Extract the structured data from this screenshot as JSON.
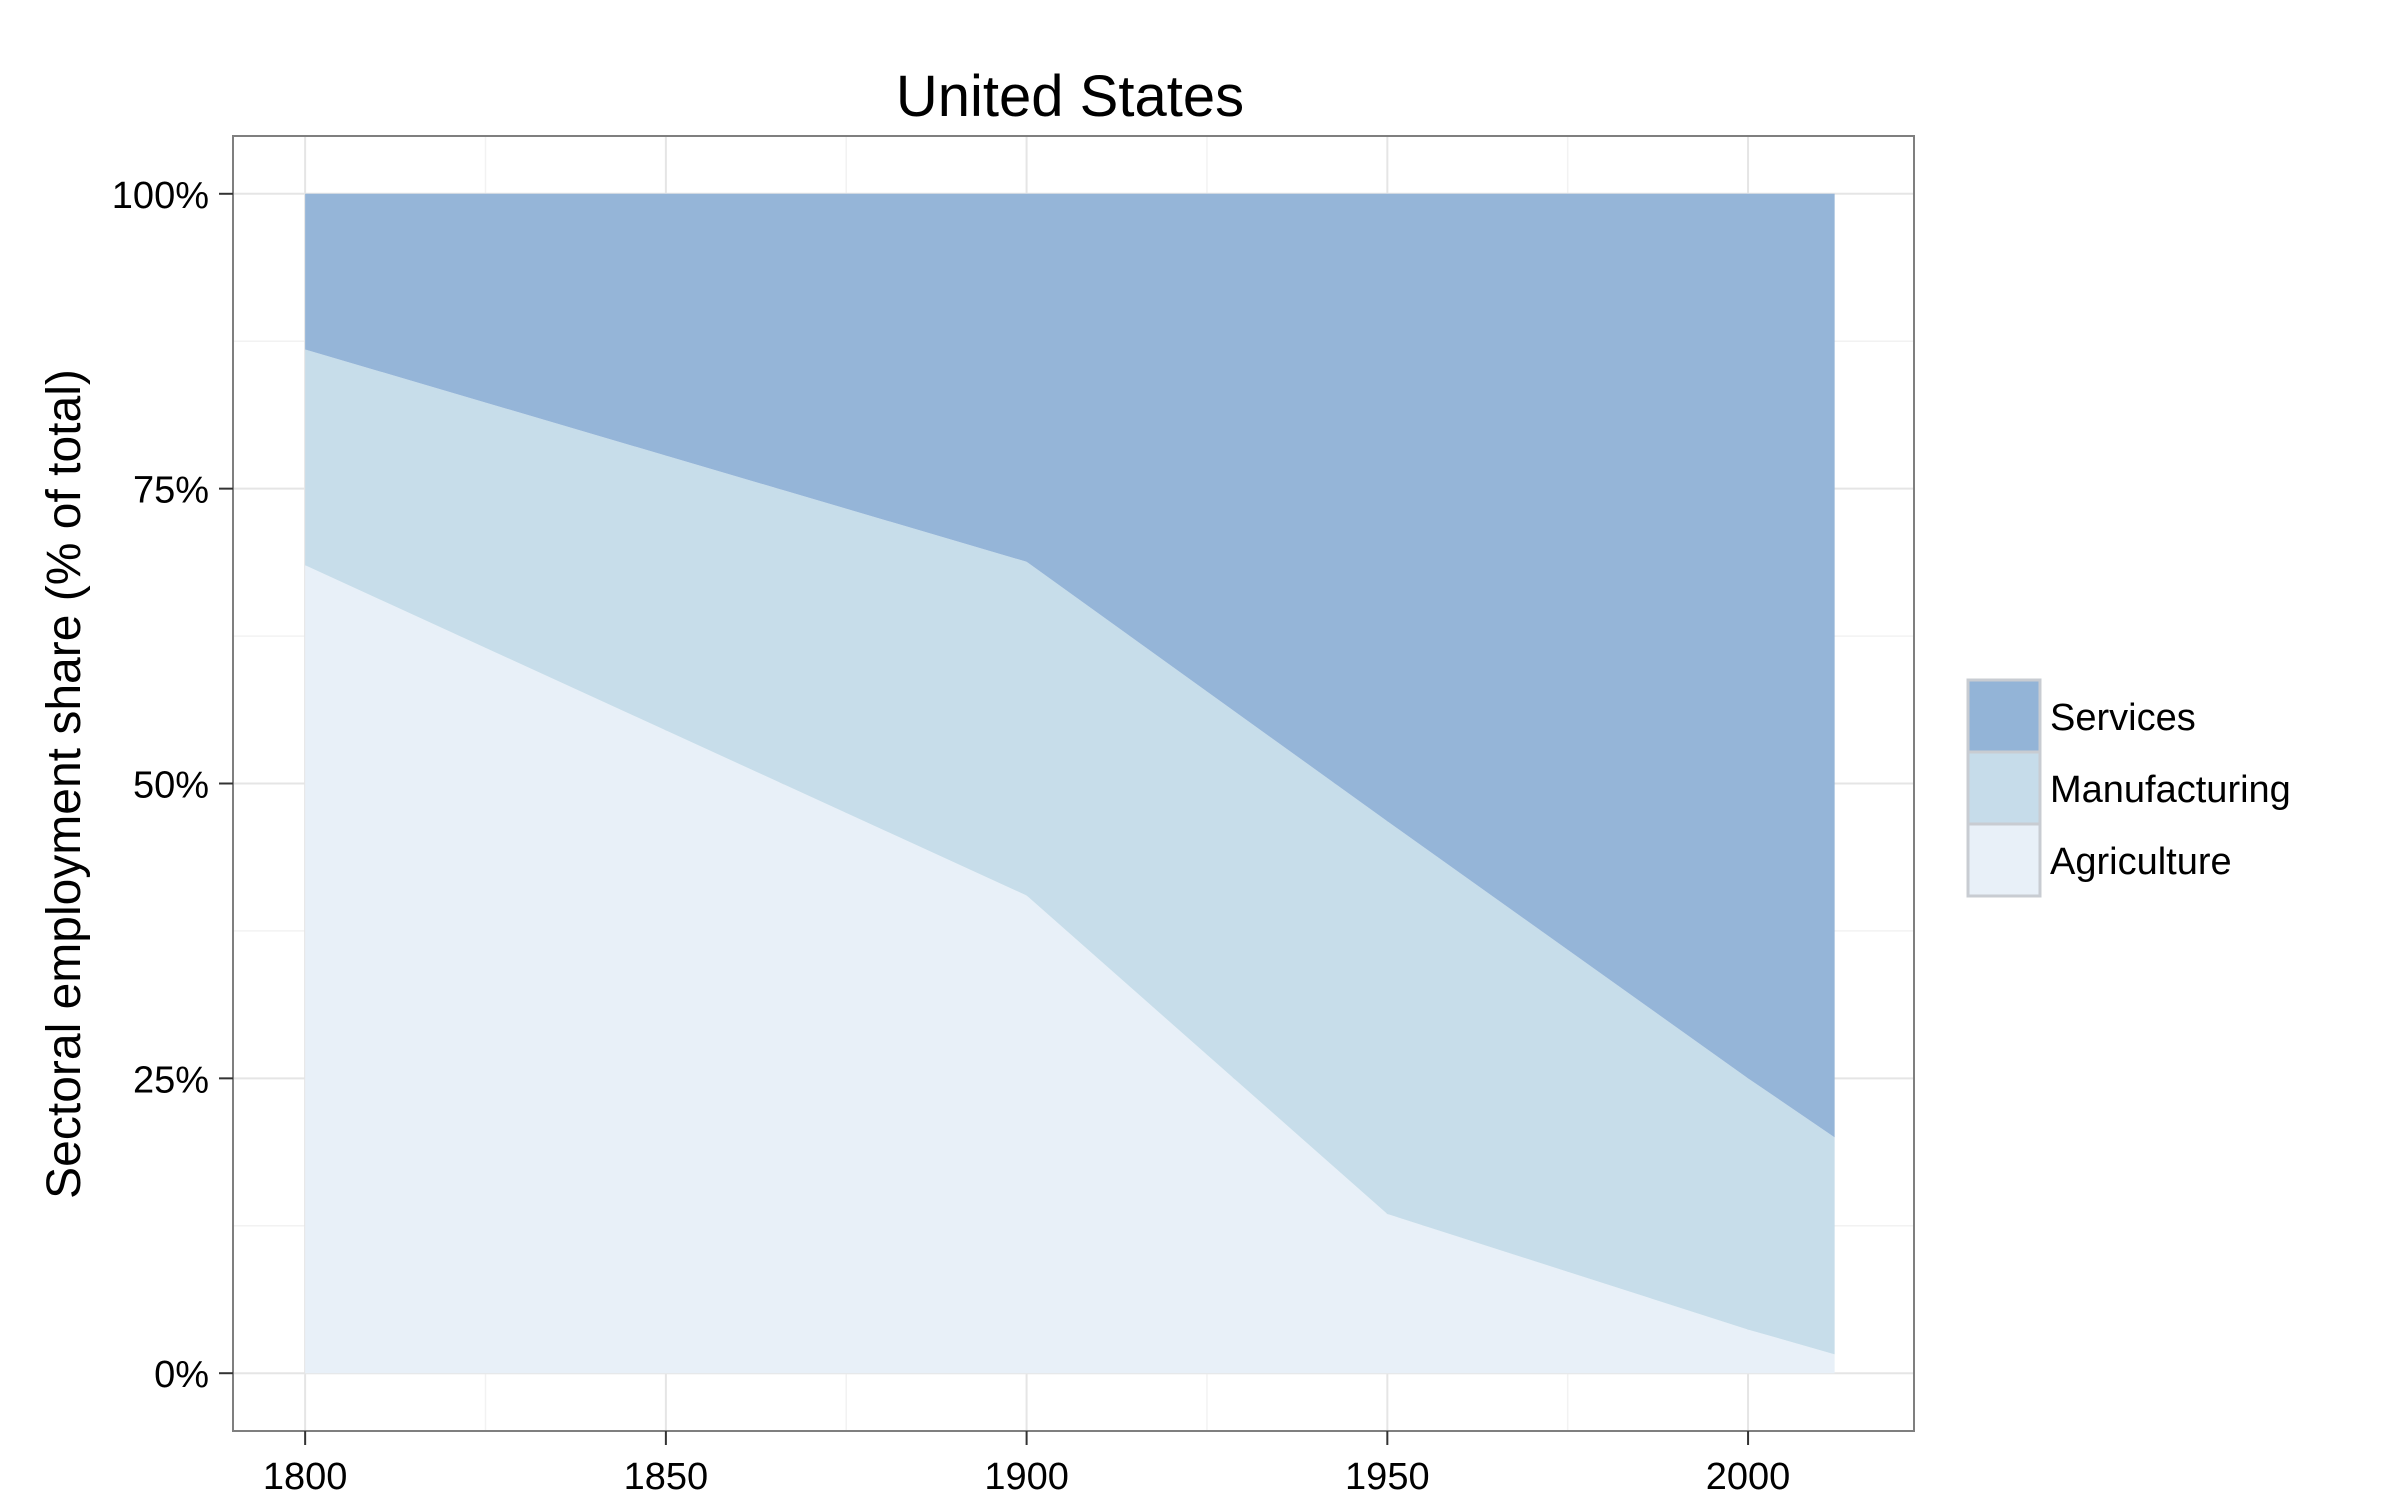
{
  "chart_data": {
    "type": "area",
    "stacked": true,
    "title": "United States",
    "xlabel": "",
    "ylabel": "Sectoral employment share (% of total)",
    "x": [
      1800,
      1900,
      1950,
      2000,
      2012
    ],
    "xlim": [
      1790,
      2023
    ],
    "ylim": [
      -0.049,
      1.049
    ],
    "x_ticks": [
      1800,
      1850,
      1900,
      1950,
      2000
    ],
    "x_tick_labels": [
      "1800",
      "1850",
      "1900",
      "1950",
      "2000"
    ],
    "y_ticks": [
      0,
      0.25,
      0.5,
      0.75,
      1.0
    ],
    "y_tick_labels": [
      "0%",
      "25%",
      "50%",
      "75%",
      "100%"
    ],
    "grid": true,
    "legend_position": "right",
    "series": [
      {
        "name": "Agriculture",
        "values": [
          0.685,
          0.405,
          0.135,
          0.037,
          0.016
        ],
        "color": "#e8f0f8"
      },
      {
        "name": "Manufacturing",
        "values": [
          0.183,
          0.283,
          0.333,
          0.213,
          0.184
        ],
        "color": "#c6dcea"
      },
      {
        "name": "Services",
        "values": [
          0.132,
          0.312,
          0.532,
          0.75,
          0.8
        ],
        "color": "#93b4d7"
      }
    ]
  }
}
